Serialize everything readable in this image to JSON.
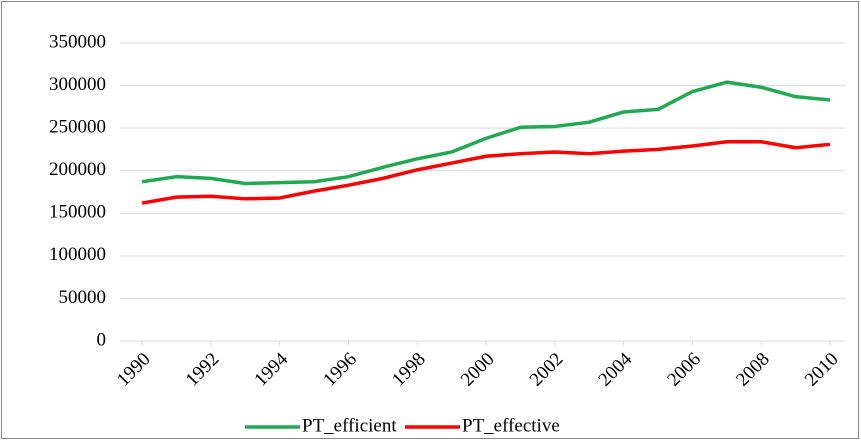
{
  "chart_data": {
    "type": "line",
    "x": [
      1990,
      1991,
      1992,
      1993,
      1994,
      1995,
      1996,
      1997,
      1998,
      1999,
      2000,
      2001,
      2002,
      2003,
      2004,
      2005,
      2006,
      2007,
      2008,
      2009,
      2010
    ],
    "xlim": [
      1990,
      2010
    ],
    "xticks": [
      1990,
      1992,
      1994,
      1996,
      1998,
      2000,
      2002,
      2004,
      2006,
      2008,
      2010
    ],
    "ylim": [
      0,
      350000
    ],
    "yticks": [
      0,
      50000,
      100000,
      150000,
      200000,
      250000,
      300000,
      350000
    ],
    "grid": true,
    "legend": "bottom",
    "series": [
      {
        "name": "PT_efficient",
        "color": "#22a852",
        "values": [
          187000,
          193000,
          191000,
          185000,
          186000,
          187000,
          193000,
          204000,
          214000,
          222000,
          238000,
          251000,
          252000,
          257000,
          269000,
          272000,
          293000,
          304000,
          298000,
          287000,
          283000
        ]
      },
      {
        "name": "PT_effective",
        "color": "#ff0000",
        "values": [
          162000,
          169000,
          170000,
          167000,
          168000,
          176000,
          183000,
          191000,
          201000,
          209000,
          217000,
          220000,
          222000,
          220000,
          223000,
          225000,
          229000,
          234000,
          234000,
          227000,
          231000
        ]
      }
    ]
  }
}
